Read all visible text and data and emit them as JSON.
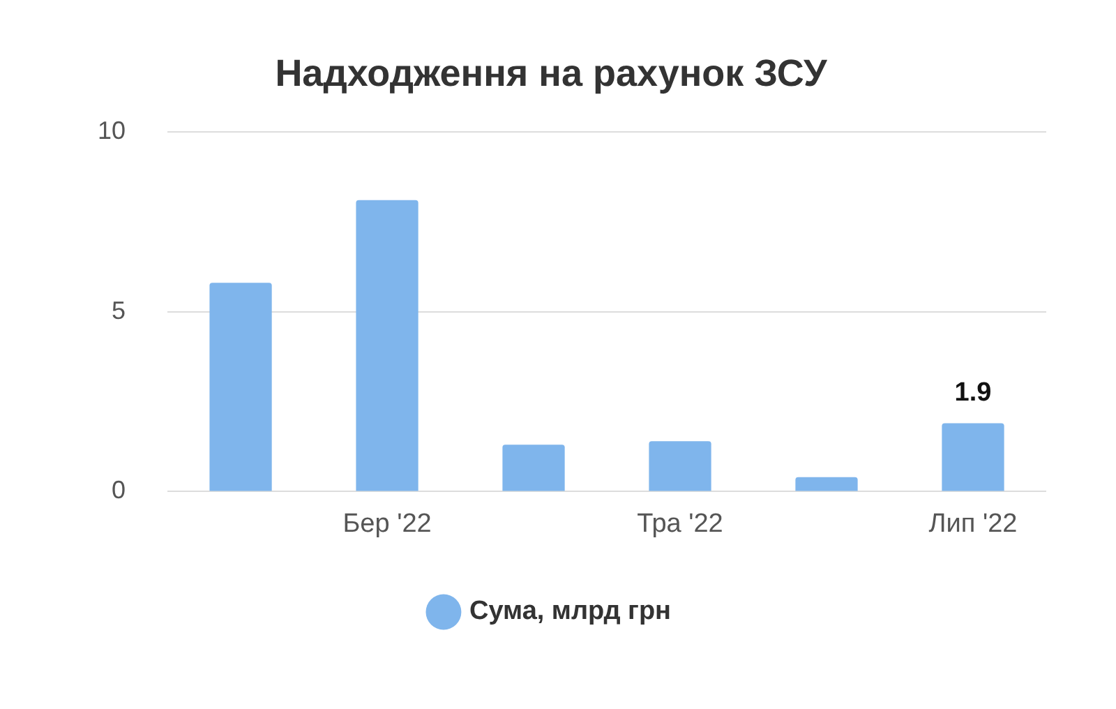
{
  "chart_data": {
    "type": "bar",
    "title": "Надходження на рахунок ЗСУ",
    "categories": [
      null,
      "Бер '22",
      null,
      "Тра '22",
      null,
      "Лип '22"
    ],
    "series": [
      {
        "name": "Сума, млрд грн",
        "color": "#7fb5ec",
        "values": [
          5.8,
          8.1,
          1.3,
          1.4,
          0.4,
          1.9
        ],
        "value_labels": [
          null,
          null,
          null,
          null,
          null,
          "1.9"
        ]
      }
    ],
    "ylim": [
      0,
      10
    ],
    "yticks": [
      0,
      5,
      10
    ],
    "grid": "y",
    "legend": "bottom"
  }
}
